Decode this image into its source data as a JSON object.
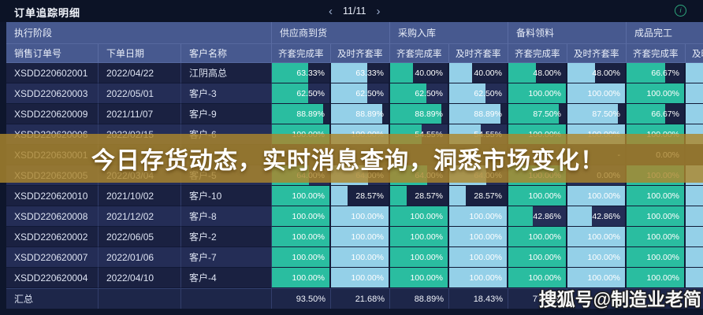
{
  "titlebar": {
    "title": "订单追踪明细",
    "pagination": {
      "prev": "‹",
      "current": "11/11",
      "next": "›"
    },
    "info_icon": "i"
  },
  "table": {
    "stage_header": "执行阶段",
    "groups": [
      {
        "label": "供应商到货"
      },
      {
        "label": "采购入库"
      },
      {
        "label": "备料领料"
      },
      {
        "label": "成品完工"
      }
    ],
    "columns": [
      "销售订单号",
      "下单日期",
      "客户名称"
    ],
    "metric_headers": [
      "齐套完成率",
      "及时齐套率"
    ],
    "rows": [
      {
        "order": "XSDD220602001",
        "date": "2022/04/22",
        "customer": "江阴高总",
        "values": [
          [
            "63.33%",
            63.33
          ],
          [
            "63.33%",
            63.33
          ],
          [
            "40.00%",
            40
          ],
          [
            "40.00%",
            40
          ],
          [
            "48.00%",
            48
          ],
          [
            "48.00%",
            48
          ],
          [
            "66.67%",
            66.67
          ],
          [
            "",
            100
          ]
        ]
      },
      {
        "order": "XSDD220620003",
        "date": "2022/05/01",
        "customer": "客户-3",
        "values": [
          [
            "62.50%",
            62.5
          ],
          [
            "62.50%",
            62.5
          ],
          [
            "62.50%",
            62.5
          ],
          [
            "62.50%",
            62.5
          ],
          [
            "100.00%",
            100
          ],
          [
            "100.00%",
            100
          ],
          [
            "100.00%",
            100
          ],
          [
            "",
            100
          ]
        ]
      },
      {
        "order": "XSDD220620009",
        "date": "2021/11/07",
        "customer": "客户-9",
        "values": [
          [
            "88.89%",
            88.89
          ],
          [
            "88.89%",
            88.89
          ],
          [
            "88.89%",
            88.89
          ],
          [
            "88.89%",
            88.89
          ],
          [
            "87.50%",
            87.5
          ],
          [
            "87.50%",
            87.5
          ],
          [
            "66.67%",
            66.67
          ],
          [
            "",
            100
          ]
        ]
      },
      {
        "order": "XSDD220620006",
        "date": "2022/02/15",
        "customer": "客户-6",
        "values": [
          [
            "100.00%",
            100
          ],
          [
            "100.00%",
            100
          ],
          [
            "54.55%",
            54.55
          ],
          [
            "54.55%",
            54.55
          ],
          [
            "100.00%",
            100
          ],
          [
            "100.00%",
            100
          ],
          [
            "100.00%",
            100
          ],
          [
            "",
            100
          ]
        ]
      },
      {
        "order": "XSDD220630001",
        "date": "",
        "customer": "",
        "values": [
          [
            "",
            null
          ],
          [
            "",
            null
          ],
          [
            "",
            null
          ],
          [
            "",
            null
          ],
          [
            "",
            null
          ],
          [
            "-",
            null
          ],
          [
            "0.00%",
            0
          ],
          [
            "",
            null
          ]
        ]
      },
      {
        "order": "XSDD220620005",
        "date": "2022/03/04",
        "customer": "客户-5",
        "values": [
          [
            "64.00%",
            64
          ],
          [
            "64.00%",
            64
          ],
          [
            "64.00%",
            64
          ],
          [
            "64.00%",
            64
          ],
          [
            "100.00%",
            100
          ],
          [
            "0.00%",
            0
          ],
          [
            "100.00%",
            100
          ],
          [
            "",
            100
          ]
        ]
      },
      {
        "order": "XSDD220620010",
        "date": "2021/10/02",
        "customer": "客户-10",
        "values": [
          [
            "100.00%",
            100
          ],
          [
            "28.57%",
            28.57
          ],
          [
            "28.57%",
            28.57
          ],
          [
            "28.57%",
            28.57
          ],
          [
            "100.00%",
            100
          ],
          [
            "100.00%",
            100
          ],
          [
            "100.00%",
            100
          ],
          [
            "",
            100
          ]
        ]
      },
      {
        "order": "XSDD220620008",
        "date": "2021/12/02",
        "customer": "客户-8",
        "values": [
          [
            "100.00%",
            100
          ],
          [
            "100.00%",
            100
          ],
          [
            "100.00%",
            100
          ],
          [
            "100.00%",
            100
          ],
          [
            "42.86%",
            42.86
          ],
          [
            "42.86%",
            42.86
          ],
          [
            "100.00%",
            100
          ],
          [
            "",
            100
          ]
        ]
      },
      {
        "order": "XSDD220620002",
        "date": "2022/06/05",
        "customer": "客户-2",
        "values": [
          [
            "100.00%",
            100
          ],
          [
            "100.00%",
            100
          ],
          [
            "100.00%",
            100
          ],
          [
            "100.00%",
            100
          ],
          [
            "100.00%",
            100
          ],
          [
            "100.00%",
            100
          ],
          [
            "100.00%",
            100
          ],
          [
            "",
            100
          ]
        ]
      },
      {
        "order": "XSDD220620007",
        "date": "2022/01/06",
        "customer": "客户-7",
        "values": [
          [
            "100.00%",
            100
          ],
          [
            "100.00%",
            100
          ],
          [
            "100.00%",
            100
          ],
          [
            "100.00%",
            100
          ],
          [
            "100.00%",
            100
          ],
          [
            "100.00%",
            100
          ],
          [
            "100.00%",
            100
          ],
          [
            "",
            100
          ]
        ]
      },
      {
        "order": "XSDD220620004",
        "date": "2022/04/10",
        "customer": "客户-4",
        "values": [
          [
            "100.00%",
            100
          ],
          [
            "100.00%",
            100
          ],
          [
            "100.00%",
            100
          ],
          [
            "100.00%",
            100
          ],
          [
            "100.00%",
            100
          ],
          [
            "100.00%",
            100
          ],
          [
            "100.00%",
            100
          ],
          [
            "",
            100
          ]
        ]
      }
    ],
    "summary": {
      "label": "汇总",
      "values": [
        "93.50%",
        "21.68%",
        "88.89%",
        "18.43%",
        "77.78%",
        "",
        "",
        ""
      ]
    }
  },
  "banner": {
    "text": "今日存货动态，实时消息查询，洞悉市场变化！"
  },
  "watermark": {
    "text": "搜狐号@制造业老简"
  },
  "colors": {
    "complete_bar": "#2abda0",
    "timely_bar": "#94d0e8",
    "header_bg": "#47598f",
    "banner_gold": "#ac862c",
    "row_odd": "#1a2141",
    "row_even": "#242d56",
    "info_green": "#2ea87d"
  }
}
